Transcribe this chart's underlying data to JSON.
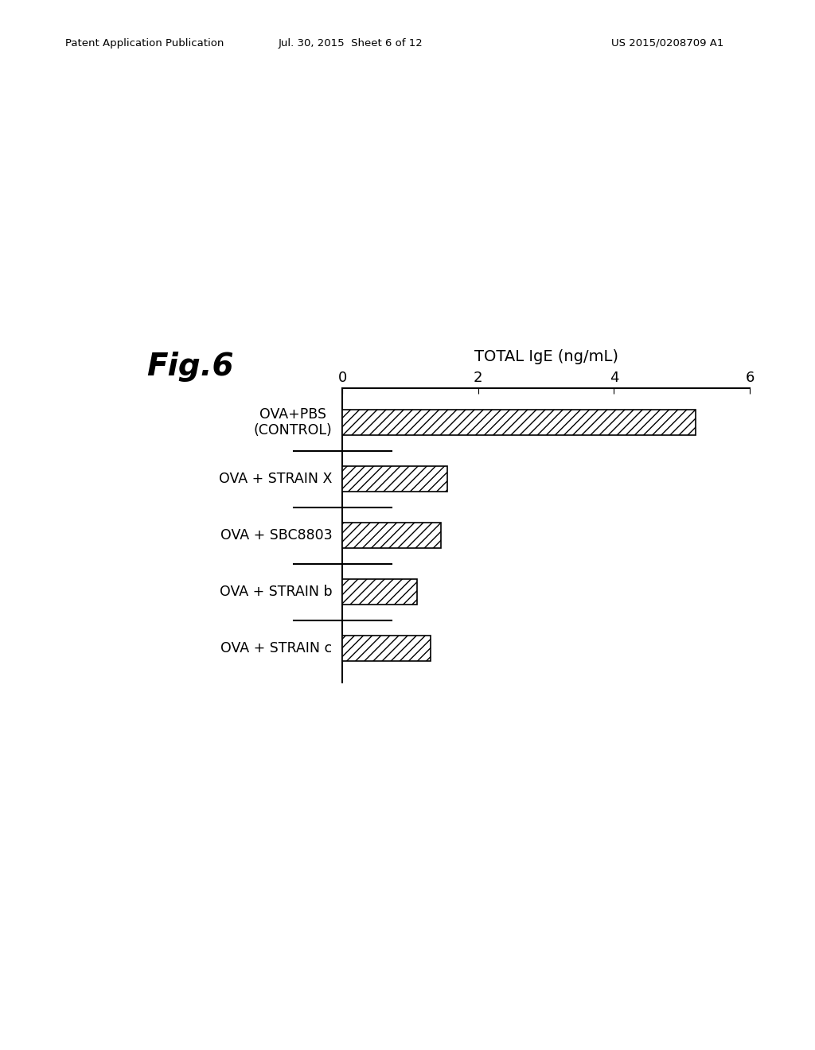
{
  "title": "Fig.6",
  "xlabel": "TOTAL IgE (ng/mL)",
  "categories": [
    "OVA+PBS\n(CONTROL)",
    "OVA + STRAIN X",
    "OVA + SBC8803",
    "OVA + STRAIN b",
    "OVA + STRAIN c"
  ],
  "values": [
    5.2,
    1.55,
    1.45,
    1.1,
    1.3
  ],
  "xlim": [
    0,
    6
  ],
  "xticks": [
    0,
    2,
    4,
    6
  ],
  "bar_color": "#ffffff",
  "bar_edgecolor": "#000000",
  "hatch": "///",
  "background_color": "#ffffff",
  "fig_label": "Fig.6",
  "header_line1": "Patent Application Publication",
  "header_line2": "Jul. 30, 2015  Sheet 6 of 12",
  "header_line3": "US 2015/0208709 A1"
}
